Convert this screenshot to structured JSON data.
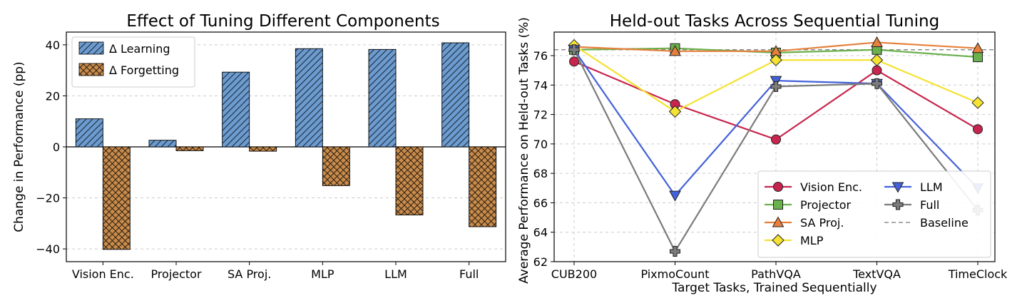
{
  "chart_data": [
    {
      "type": "bar",
      "title": "Effect of Tuning Different Components",
      "xlabel": "",
      "ylabel": "Change in Performance (pp)",
      "categories": [
        "Vision Enc.",
        "Projector",
        "SA Proj.",
        "MLP",
        "LLM",
        "Full"
      ],
      "ylim": [
        -45,
        45
      ],
      "yticks": [
        -40,
        -20,
        0,
        20,
        40
      ],
      "grid": true,
      "legend_position": "top-left",
      "series": [
        {
          "name": "Δ Learning",
          "values": [
            11.0,
            2.6,
            29.3,
            38.5,
            38.2,
            40.8
          ],
          "color": "#6b9bcf",
          "hatch": "diagonal"
        },
        {
          "name": "Δ Forgetting",
          "values": [
            -40.2,
            -1.5,
            -1.7,
            -15.2,
            -26.7,
            -31.3
          ],
          "color": "#c98b4b",
          "hatch": "crosshatch"
        }
      ]
    },
    {
      "type": "line",
      "title": "Held-out Tasks Across Sequential Tuning",
      "xlabel": "Target Tasks, Trained Sequentially",
      "ylabel": "Average Performance on Held-out Tasks (%)",
      "categories": [
        "CUB200",
        "PixmoCount",
        "PathVQA",
        "TextVQA",
        "TimeClock"
      ],
      "ylim": [
        62,
        77.6
      ],
      "yticks": [
        62,
        64,
        66,
        68,
        70,
        72,
        74,
        76
      ],
      "grid": true,
      "legend_position": "lower-right",
      "baseline": {
        "name": "Baseline",
        "value": 76.4,
        "color": "#777777"
      },
      "series": [
        {
          "name": "Vision Enc.",
          "values": [
            75.6,
            72.7,
            70.3,
            75.0,
            71.0
          ],
          "color": "#c8254e",
          "marker": "circle"
        },
        {
          "name": "Projector",
          "values": [
            76.4,
            76.5,
            76.2,
            76.4,
            75.9
          ],
          "color": "#6ab04c",
          "marker": "square"
        },
        {
          "name": "SA Proj.",
          "values": [
            76.6,
            76.3,
            76.3,
            76.9,
            76.5
          ],
          "color": "#e6803c",
          "marker": "triangle-up"
        },
        {
          "name": "MLP",
          "values": [
            76.7,
            72.2,
            75.7,
            75.7,
            72.8
          ],
          "color": "#f5e232",
          "marker": "diamond"
        },
        {
          "name": "LLM",
          "values": [
            76.4,
            66.5,
            74.3,
            74.1,
            67.0
          ],
          "color": "#4361d8",
          "marker": "triangle-down"
        },
        {
          "name": "Full",
          "values": [
            76.4,
            62.7,
            73.9,
            74.1,
            65.5
          ],
          "color": "#7c7c7c",
          "marker": "plus"
        }
      ]
    }
  ]
}
